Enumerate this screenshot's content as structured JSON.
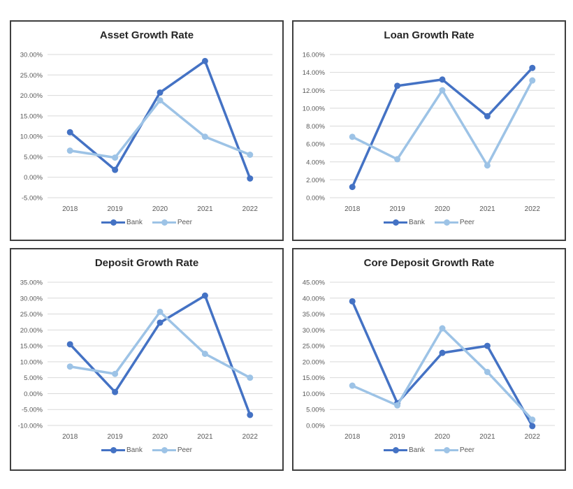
{
  "colors": {
    "bank": "#4472C4",
    "peer": "#9DC3E6",
    "gridline": "#D9D9D9",
    "axis_text": "#595959",
    "title_text": "#262626",
    "chart_border": "#3F3F3F",
    "background": "#FFFFFF"
  },
  "chart_data": [
    {
      "type": "line",
      "title": "Asset Growth Rate",
      "categories": [
        "2018",
        "2019",
        "2020",
        "2021",
        "2022"
      ],
      "series": [
        {
          "name": "Bank",
          "color": "#4472C4",
          "values": [
            11.0,
            1.8,
            20.7,
            28.4,
            -0.3
          ]
        },
        {
          "name": "Peer",
          "color": "#9DC3E6",
          "values": [
            6.5,
            4.8,
            18.8,
            9.9,
            5.5
          ]
        }
      ],
      "ylim": [
        -5,
        30
      ],
      "yticks": [
        {
          "v": -5,
          "label": "-5.00%"
        },
        {
          "v": 0,
          "label": "0.00%"
        },
        {
          "v": 5,
          "label": "5.00%"
        },
        {
          "v": 10,
          "label": "10.00%"
        },
        {
          "v": 15,
          "label": "15.00%"
        },
        {
          "v": 20,
          "label": "20.00%"
        },
        {
          "v": 25,
          "label": "25.00%"
        },
        {
          "v": 30,
          "label": "30.00%"
        }
      ],
      "grid": "horizontal",
      "legend_position": "bottom"
    },
    {
      "type": "line",
      "title": "Loan Growth Rate",
      "categories": [
        "2018",
        "2019",
        "2020",
        "2021",
        "2022"
      ],
      "series": [
        {
          "name": "Bank",
          "color": "#4472C4",
          "values": [
            1.2,
            12.5,
            13.2,
            9.1,
            14.5
          ]
        },
        {
          "name": "Peer",
          "color": "#9DC3E6",
          "values": [
            6.8,
            4.3,
            12.0,
            3.6,
            13.1
          ]
        }
      ],
      "ylim": [
        0,
        16
      ],
      "yticks": [
        {
          "v": 0,
          "label": "0.00%"
        },
        {
          "v": 2,
          "label": "2.00%"
        },
        {
          "v": 4,
          "label": "4.00%"
        },
        {
          "v": 6,
          "label": "6.00%"
        },
        {
          "v": 8,
          "label": "8.00%"
        },
        {
          "v": 10,
          "label": "10.00%"
        },
        {
          "v": 12,
          "label": "12.00%"
        },
        {
          "v": 14,
          "label": "14.00%"
        },
        {
          "v": 16,
          "label": "16.00%"
        }
      ],
      "grid": "horizontal",
      "legend_position": "bottom"
    },
    {
      "type": "line",
      "title": "Deposit Growth Rate",
      "categories": [
        "2018",
        "2019",
        "2020",
        "2021",
        "2022"
      ],
      "series": [
        {
          "name": "Bank",
          "color": "#4472C4",
          "values": [
            15.5,
            0.5,
            22.3,
            30.8,
            -6.7
          ]
        },
        {
          "name": "Peer",
          "color": "#9DC3E6",
          "values": [
            8.5,
            6.2,
            25.7,
            12.5,
            5.0
          ]
        }
      ],
      "ylim": [
        -10,
        35
      ],
      "yticks": [
        {
          "v": -10,
          "label": "-10.00%"
        },
        {
          "v": -5,
          "label": "-5.00%"
        },
        {
          "v": 0,
          "label": "0.00%"
        },
        {
          "v": 5,
          "label": "5.00%"
        },
        {
          "v": 10,
          "label": "10.00%"
        },
        {
          "v": 15,
          "label": "15.00%"
        },
        {
          "v": 20,
          "label": "20.00%"
        },
        {
          "v": 25,
          "label": "25.00%"
        },
        {
          "v": 30,
          "label": "30.00%"
        },
        {
          "v": 35,
          "label": "35.00%"
        }
      ],
      "grid": "horizontal",
      "legend_position": "bottom"
    },
    {
      "type": "line",
      "title": "Core Deposit Growth Rate",
      "categories": [
        "2018",
        "2019",
        "2020",
        "2021",
        "2022"
      ],
      "series": [
        {
          "name": "Bank",
          "color": "#4472C4",
          "values": [
            39.0,
            7.0,
            22.8,
            25.0,
            -0.2
          ]
        },
        {
          "name": "Peer",
          "color": "#9DC3E6",
          "values": [
            12.5,
            6.3,
            30.5,
            16.8,
            1.8
          ]
        }
      ],
      "ylim": [
        0,
        45
      ],
      "yticks": [
        {
          "v": 0,
          "label": "0.00%"
        },
        {
          "v": 5,
          "label": "5.00%"
        },
        {
          "v": 10,
          "label": "10.00%"
        },
        {
          "v": 15,
          "label": "15.00%"
        },
        {
          "v": 20,
          "label": "20.00%"
        },
        {
          "v": 25,
          "label": "25.00%"
        },
        {
          "v": 30,
          "label": "30.00%"
        },
        {
          "v": 35,
          "label": "35.00%"
        },
        {
          "v": 40,
          "label": "40.00%"
        },
        {
          "v": 45,
          "label": "45.00%"
        }
      ],
      "grid": "horizontal",
      "legend_position": "bottom"
    }
  ]
}
